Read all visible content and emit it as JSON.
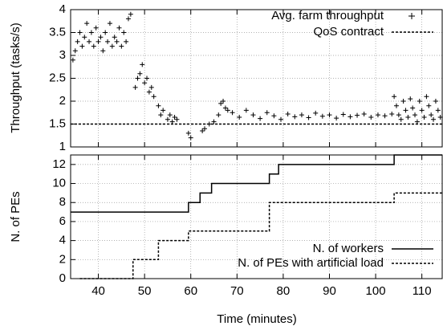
{
  "chart_data": [
    {
      "type": "scatter",
      "ylabel": "Throughput (tasks/s)",
      "xlim": [
        34,
        114.4
      ],
      "xticks": [
        40,
        50,
        60,
        70,
        80,
        90,
        100,
        110
      ],
      "ylim": [
        1,
        4
      ],
      "yticks": [
        1,
        1.5,
        2,
        2.5,
        3,
        3.5,
        4
      ],
      "grid": true,
      "legend": "upper right",
      "series": [
        {
          "name": "Avg. farm throughput",
          "color": "#000000",
          "marker": "+",
          "x": [
            34.5,
            35,
            35.5,
            36,
            36.5,
            37,
            37.5,
            38,
            38.5,
            39,
            39.5,
            40,
            40.5,
            41,
            41.5,
            42,
            42.5,
            43,
            43.5,
            44,
            44.5,
            45,
            45.5,
            46,
            46.5,
            47,
            48,
            48.5,
            49,
            49.5,
            50,
            50.5,
            51,
            51.5,
            52,
            53,
            53.5,
            54,
            55,
            55.5,
            56,
            56.5,
            57,
            59.5,
            60,
            62.5,
            63,
            64,
            65,
            66,
            66.5,
            67,
            67.5,
            68,
            69,
            70.5,
            72,
            73.5,
            75,
            76.5,
            78,
            79.5,
            81,
            82.5,
            84,
            85.5,
            87,
            88.5,
            90,
            91.5,
            93,
            94.5,
            96,
            97.5,
            99,
            100.5,
            102,
            103.5,
            104,
            104.5,
            105,
            105.5,
            106,
            106.5,
            107,
            107.5,
            108,
            108.5,
            109,
            109.5,
            110,
            110.5,
            111,
            111.5,
            112,
            112.5,
            113,
            113.5,
            114
          ],
          "values": [
            2.9,
            3.1,
            3.3,
            3.5,
            3.2,
            3.4,
            3.7,
            3.3,
            3.5,
            3.2,
            3.6,
            3.3,
            3.4,
            3.1,
            3.5,
            3.3,
            3.7,
            3.2,
            3.4,
            3.3,
            3.6,
            3.2,
            3.5,
            3.3,
            3.8,
            3.9,
            2.3,
            2.5,
            2.6,
            2.8,
            2.4,
            2.5,
            2.2,
            2.3,
            2.1,
            1.9,
            1.7,
            1.8,
            1.6,
            1.7,
            1.55,
            1.65,
            1.6,
            1.3,
            1.2,
            1.35,
            1.4,
            1.5,
            1.55,
            1.7,
            1.95,
            2.0,
            1.85,
            1.8,
            1.75,
            1.65,
            1.8,
            1.7,
            1.62,
            1.75,
            1.68,
            1.6,
            1.72,
            1.66,
            1.7,
            1.64,
            1.74,
            1.67,
            1.7,
            1.63,
            1.71,
            1.66,
            1.69,
            1.72,
            1.65,
            1.7,
            1.68,
            1.72,
            2.1,
            1.9,
            1.7,
            1.6,
            2.0,
            1.8,
            1.65,
            2.05,
            1.85,
            1.7,
            1.55,
            2.0,
            1.8,
            1.65,
            2.1,
            1.9,
            1.7,
            1.6,
            2.0,
            1.8,
            1.65
          ]
        },
        {
          "name": "QoS contract",
          "color": "#000000",
          "line": "dashed",
          "x": [
            34,
            114.4
          ],
          "values": [
            1.5,
            1.5
          ]
        }
      ]
    },
    {
      "type": "step",
      "ylabel": "N. of PEs",
      "xlabel": "Time (minutes)",
      "xlim": [
        34,
        114.4
      ],
      "xticks": [
        40,
        50,
        60,
        70,
        80,
        90,
        100,
        110
      ],
      "ylim": [
        0,
        13
      ],
      "yticks": [
        0,
        2,
        4,
        6,
        8,
        10,
        12
      ],
      "grid": true,
      "legend": "lower right",
      "series": [
        {
          "name": "N. of workers",
          "color": "#000000",
          "line": "solid",
          "x": [
            34,
            59.5,
            62,
            64.5,
            77,
            79,
            104,
            114.4
          ],
          "values": [
            7,
            8,
            9,
            10,
            11,
            12,
            13,
            13
          ]
        },
        {
          "name": "N. of PEs with artificial load",
          "color": "#000000",
          "line": "dashed",
          "x": [
            36,
            47.5,
            53,
            59.5,
            77,
            104,
            114.4
          ],
          "values": [
            0,
            2,
            4,
            5,
            8,
            9,
            9
          ]
        }
      ]
    }
  ]
}
